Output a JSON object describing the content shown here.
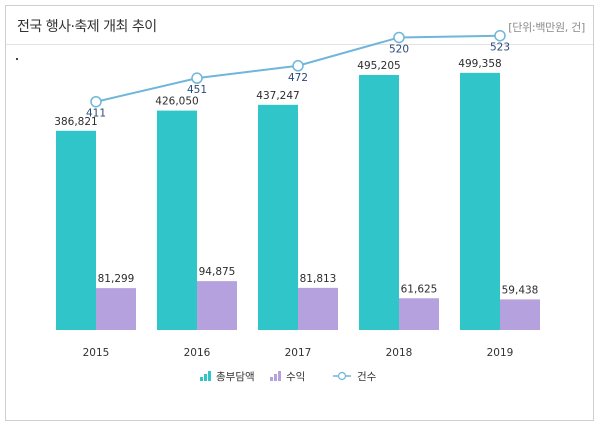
{
  "header": {
    "title": "전국 행사·축제 개최 추이",
    "unit": "[단위:백만원, 건]"
  },
  "chart_data": {
    "type": "bar",
    "categories": [
      "2015",
      "2016",
      "2017",
      "2018",
      "2019"
    ],
    "series": [
      {
        "name": "총부담액",
        "kind": "bar",
        "color": "#30c5c8",
        "values": [
          386821,
          426050,
          437247,
          495205,
          499358
        ],
        "labels": [
          "386,821",
          "426,050",
          "437,247",
          "495,205",
          "499,358"
        ]
      },
      {
        "name": "수익",
        "kind": "bar",
        "color": "#b5a1de",
        "values": [
          81299,
          94875,
          81813,
          61625,
          59438
        ],
        "labels": [
          "81,299",
          "94,875",
          "81,813",
          "61,625",
          "59,438"
        ]
      },
      {
        "name": "건수",
        "kind": "line",
        "color": "#6fb6db",
        "values": [
          411,
          451,
          472,
          520,
          523
        ],
        "labels": [
          "411",
          "451",
          "472",
          "520",
          "523"
        ]
      }
    ],
    "legend": [
      "총부담액",
      "수익",
      "건수"
    ],
    "legend_position": "bottom",
    "ylim_bars": [
      0,
      560000
    ],
    "ylim_line": [
      -300,
      560
    ],
    "grid": false
  }
}
